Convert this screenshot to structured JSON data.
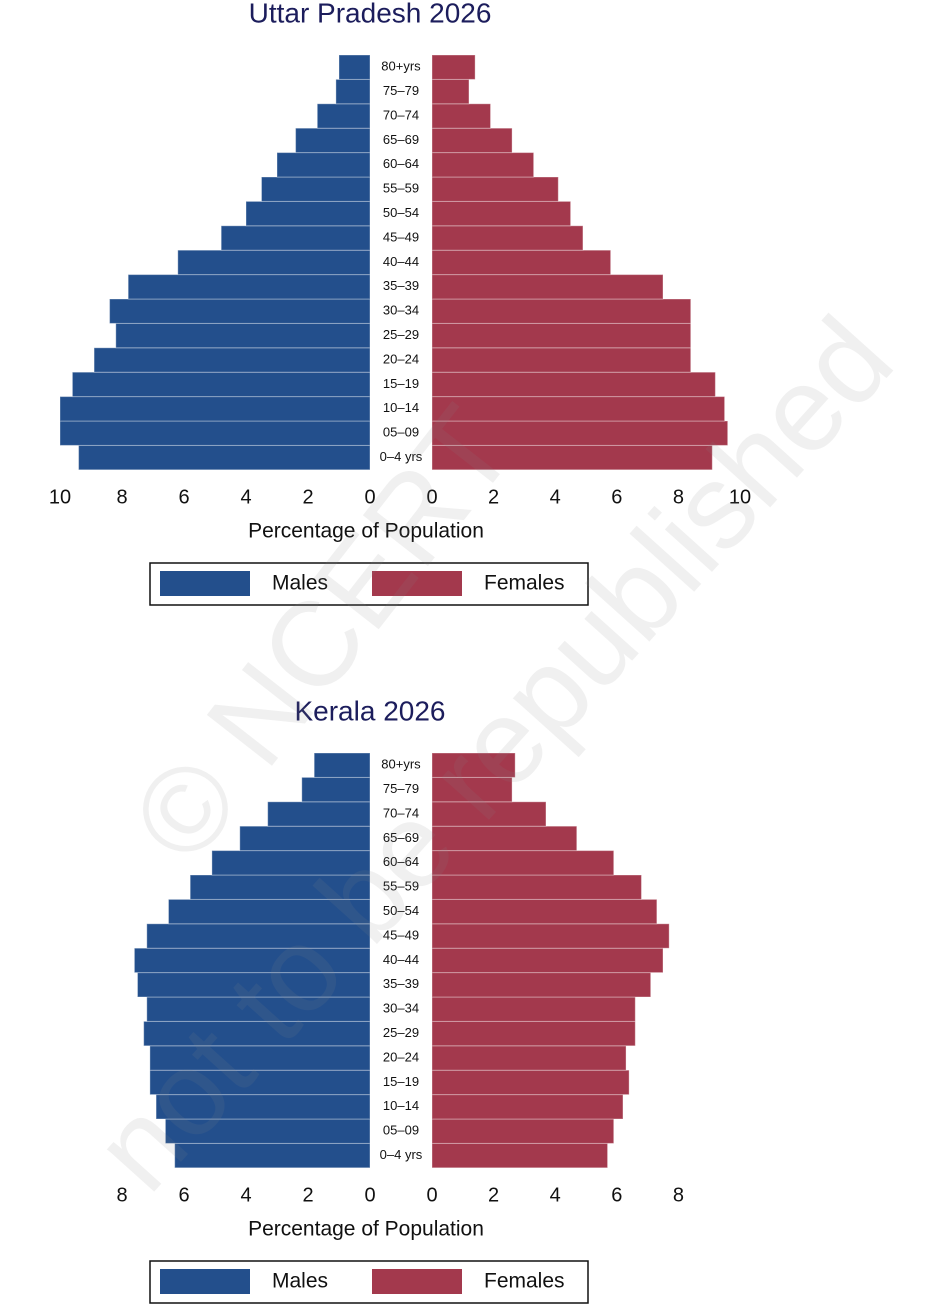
{
  "chart_data": [
    {
      "type": "pyramid",
      "title": "Uttar Pradesh 2026",
      "categories": [
        "0–4 yrs",
        "05–09",
        "10–14",
        "15–19",
        "20–24",
        "25–29",
        "30–34",
        "35–39",
        "40–44",
        "45–49",
        "50–54",
        "55–59",
        "60–64",
        "65–69",
        "70–74",
        "75–79",
        "80+yrs"
      ],
      "series": [
        {
          "name": "Males",
          "color": "#234f8c",
          "values": [
            9.4,
            10.0,
            10.0,
            9.6,
            8.9,
            8.2,
            8.4,
            7.8,
            6.2,
            4.8,
            4.0,
            3.5,
            3.0,
            2.4,
            1.7,
            1.1,
            1.0
          ]
        },
        {
          "name": "Females",
          "color": "#a3394d",
          "values": [
            9.1,
            9.6,
            9.5,
            9.2,
            8.4,
            8.4,
            8.4,
            7.5,
            5.8,
            4.9,
            4.5,
            4.1,
            3.3,
            2.6,
            1.9,
            1.2,
            1.4
          ]
        }
      ],
      "xlabel": "Percentage of Population",
      "xlim": [
        0,
        10
      ],
      "xticks": [
        0,
        2,
        4,
        6,
        8,
        10
      ]
    },
    {
      "type": "pyramid",
      "title": "Kerala 2026",
      "categories": [
        "0–4 yrs",
        "05–09",
        "10–14",
        "15–19",
        "20–24",
        "25–29",
        "30–34",
        "35–39",
        "40–44",
        "45–49",
        "50–54",
        "55–59",
        "60–64",
        "65–69",
        "70–74",
        "75–79",
        "80+yrs"
      ],
      "series": [
        {
          "name": "Males",
          "color": "#234f8c",
          "values": [
            6.3,
            6.6,
            6.9,
            7.1,
            7.1,
            7.3,
            7.2,
            7.5,
            7.6,
            7.2,
            6.5,
            5.8,
            5.1,
            4.2,
            3.3,
            2.2,
            1.8
          ]
        },
        {
          "name": "Females",
          "color": "#a3394d",
          "values": [
            5.7,
            5.9,
            6.2,
            6.4,
            6.3,
            6.6,
            6.6,
            7.1,
            7.5,
            7.7,
            7.3,
            6.8,
            5.9,
            4.7,
            3.7,
            2.6,
            2.7
          ]
        }
      ],
      "xlabel": "Percentage of Population",
      "xlim": [
        0,
        10
      ],
      "xticks": [
        0,
        2,
        4,
        6,
        8
      ]
    }
  ],
  "watermark": [
    "© NCERT",
    "not to be republished"
  ]
}
